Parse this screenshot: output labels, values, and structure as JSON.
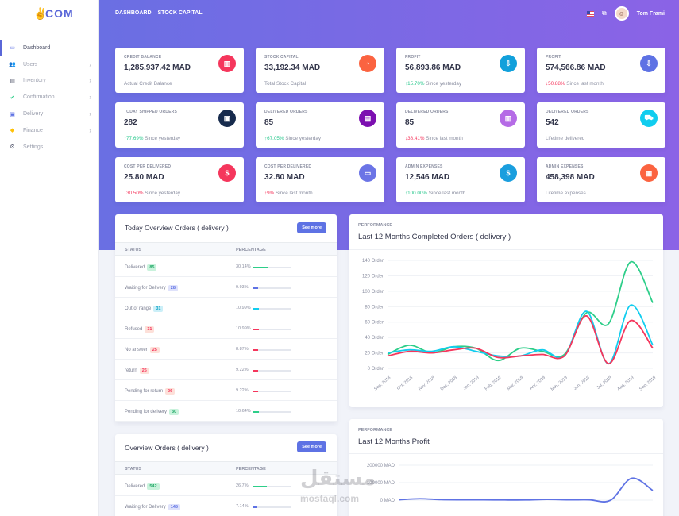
{
  "brand": {
    "logo_text": "COM"
  },
  "sidebar": {
    "items": [
      {
        "label": "Dashboard",
        "icon": "monitor-icon",
        "has_children": false
      },
      {
        "label": "Users",
        "icon": "users-icon",
        "has_children": true
      },
      {
        "label": "Inventory",
        "icon": "box-icon",
        "has_children": true
      },
      {
        "label": "Confirmation",
        "icon": "check-icon",
        "has_children": true
      },
      {
        "label": "Delivery",
        "icon": "truck-icon",
        "has_children": true
      },
      {
        "label": "Finance",
        "icon": "shield-icon",
        "has_children": true
      },
      {
        "label": "Settings",
        "icon": "gear-icon",
        "has_children": false
      }
    ]
  },
  "header": {
    "nav": [
      "DASHBOARD",
      "STOCK CAPITAL"
    ],
    "user_name": "Tom Frami"
  },
  "stats": [
    {
      "label": "CREDIT BALANCE",
      "value": "1,285,937.42 MAD",
      "trend": "",
      "trend_dir": "",
      "sub": "Actual Credit Balance",
      "icon_color": "#f5365c",
      "icon_glyph": "▥",
      "icon": "bar-chart-icon"
    },
    {
      "label": "STOCK CAPITAL",
      "value": "33,192.34 MAD",
      "trend": "",
      "trend_dir": "",
      "sub": "Total Stock Capital",
      "icon_color": "#fb6340",
      "icon_glyph": "◔",
      "icon": "pie-chart-icon"
    },
    {
      "label": "PROFIT",
      "value": "56,893.86 MAD",
      "trend": "15.70%",
      "trend_dir": "up",
      "sub": "Since yesterday",
      "icon_color": "#11a0db",
      "icon_glyph": "⇩",
      "icon": "hand-money-icon"
    },
    {
      "label": "PROFIT",
      "value": "574,566.86 MAD",
      "trend": "50.88%",
      "trend_dir": "down",
      "sub": "Since last month",
      "icon_color": "#5e72e4",
      "icon_glyph": "⇩",
      "icon": "hand-money-icon"
    },
    {
      "label": "TODAY SHIPPED ORDERS",
      "value": "282",
      "trend": "77.69%",
      "trend_dir": "up",
      "sub": "Since yesterday",
      "icon_color": "#172b4d",
      "icon_glyph": "▣",
      "icon": "basket-icon"
    },
    {
      "label": "DELIVERED ORDERS",
      "value": "85",
      "trend": "67.05%",
      "trend_dir": "up",
      "sub": "Since yesterday",
      "icon_color": "#7c0fb0",
      "icon_glyph": "▤",
      "icon": "bag-icon"
    },
    {
      "label": "DELIVERED ORDERS",
      "value": "85",
      "trend": "38.41%",
      "trend_dir": "down",
      "sub": "Since last month",
      "icon_color": "#b56be6",
      "icon_glyph": "▥",
      "icon": "chart-icon"
    },
    {
      "label": "DELIVERED ORDERS",
      "value": "542",
      "trend": "",
      "trend_dir": "",
      "sub": "Lifetime delivered",
      "icon_color": "#11cdef",
      "icon_glyph": "⛟",
      "icon": "cart-icon"
    },
    {
      "label": "COST PER DELIVERED",
      "value": "25.80 MAD",
      "trend": "30.50%",
      "trend_dir": "down",
      "sub": "Since yesterday",
      "icon_color": "#f5365c",
      "icon_glyph": "$",
      "icon": "dollar-icon"
    },
    {
      "label": "COST PER DELIVERED",
      "value": "32.80 MAD",
      "trend": "9%",
      "trend_dir": "up-red",
      "sub": "Since last month",
      "icon_color": "#6b74e6",
      "icon_glyph": "▭",
      "icon": "card-icon"
    },
    {
      "label": "ADMIN EXPENSES",
      "value": "12,546 MAD",
      "trend": "100.00%",
      "trend_dir": "up",
      "sub": "Since last month",
      "icon_color": "#1a9ede",
      "icon_glyph": "$",
      "icon": "dollar-icon"
    },
    {
      "label": "ADMIN EXPENSES",
      "value": "458,398 MAD",
      "trend": "",
      "trend_dir": "",
      "sub": "Lifetime expenses",
      "icon_color": "#fb6340",
      "icon_glyph": "▦",
      "icon": "calendar-icon"
    }
  ],
  "today_overview": {
    "title": "Today Overview Orders ( delivery )",
    "see_more": "See more",
    "col_status": "STATUS",
    "col_percentage": "PERCENTAGE",
    "rows": [
      {
        "status": "Delivered",
        "count": "85",
        "pct": "30.14%",
        "value": 30.14,
        "badge_bg": "#c9f2dc",
        "badge_fg": "#20a866",
        "bar_color": "#2dce89"
      },
      {
        "status": "Waiting for Delivery",
        "count": "28",
        "pct": "9.93%",
        "value": 9.93,
        "badge_bg": "#dfe2fb",
        "badge_fg": "#5e72e4",
        "bar_color": "#5e72e4"
      },
      {
        "status": "Out of range",
        "count": "31",
        "pct": "10.99%",
        "value": 10.99,
        "badge_bg": "#cbeff8",
        "badge_fg": "#11a5c8",
        "bar_color": "#11cdef"
      },
      {
        "status": "Refused",
        "count": "31",
        "pct": "10.99%",
        "value": 10.99,
        "badge_bg": "#fde0d9",
        "badge_fg": "#f5365c",
        "bar_color": "#f5365c"
      },
      {
        "status": "No answer",
        "count": "25",
        "pct": "8.87%",
        "value": 8.87,
        "badge_bg": "#fde0d9",
        "badge_fg": "#f5365c",
        "bar_color": "#f5365c"
      },
      {
        "status": "return",
        "count": "26",
        "pct": "9.22%",
        "value": 9.22,
        "badge_bg": "#fde0d9",
        "badge_fg": "#f5365c",
        "bar_color": "#f5365c"
      },
      {
        "status": "Pending for return",
        "count": "26",
        "pct": "9.22%",
        "value": 9.22,
        "badge_bg": "#fde0d9",
        "badge_fg": "#f5365c",
        "bar_color": "#f5365c"
      },
      {
        "status": "Pending for delivery",
        "count": "30",
        "pct": "10.64%",
        "value": 10.64,
        "badge_bg": "#c9f2dc",
        "badge_fg": "#20a866",
        "bar_color": "#2dce89"
      }
    ]
  },
  "overview": {
    "title": "Overview Orders ( delivery )",
    "see_more": "See more",
    "col_status": "STATUS",
    "col_percentage": "PERCENTAGE",
    "rows": [
      {
        "status": "Delivered",
        "count": "542",
        "pct": "26.7%",
        "value": 26.7,
        "badge_bg": "#c9f2dc",
        "badge_fg": "#20a866",
        "bar_color": "#2dce89"
      },
      {
        "status": "Waiting for Delivery",
        "count": "145",
        "pct": "7.14%",
        "value": 7.14,
        "badge_bg": "#dfe2fb",
        "badge_fg": "#5e72e4",
        "bar_color": "#5e72e4"
      }
    ]
  },
  "chart_data": [
    {
      "type": "line",
      "kicker": "PERFORMANCE",
      "title": "Last 12 Months Completed Orders ( delivery )",
      "categories": [
        "Sep, 2018",
        "Oct, 2018",
        "Nov, 2018",
        "Dec, 2018",
        "Jan, 2019",
        "Feb, 2019",
        "Mar, 2019",
        "Apr, 2019",
        "May, 2019",
        "Jun, 2019",
        "Jul, 2019",
        "Aug, 2019",
        "Sep, 2019"
      ],
      "ylim": [
        0,
        140
      ],
      "yticks": [
        "0 Order",
        "20 Order",
        "40 Order",
        "60 Order",
        "80 Order",
        "100 Order",
        "120 Order",
        "140 Order"
      ],
      "series": [
        {
          "color": "#2dce89",
          "values": [
            18,
            30,
            20,
            28,
            26,
            10,
            26,
            22,
            18,
            72,
            58,
            138,
            85
          ]
        },
        {
          "color": "#11cdef",
          "values": [
            20,
            24,
            22,
            28,
            22,
            16,
            16,
            24,
            16,
            74,
            6,
            82,
            30
          ]
        },
        {
          "color": "#f5365c",
          "values": [
            16,
            22,
            20,
            24,
            26,
            14,
            16,
            18,
            16,
            68,
            6,
            62,
            26
          ]
        }
      ]
    },
    {
      "type": "line",
      "kicker": "PERFORMANCE",
      "title": "Last 12 Months Profit",
      "yticks": [
        "0 MAD",
        "100000 MAD",
        "200000 MAD"
      ],
      "ylim": [
        0,
        200000
      ],
      "series": [
        {
          "color": "#5e72e4",
          "values": [
            2000,
            8000,
            3000,
            2000,
            2000,
            1000,
            1000,
            4000,
            2000,
            2000,
            -1000,
            125000,
            55000
          ]
        }
      ]
    }
  ],
  "watermark": {
    "arabic": "مستقل",
    "url": "mostaql.com"
  }
}
